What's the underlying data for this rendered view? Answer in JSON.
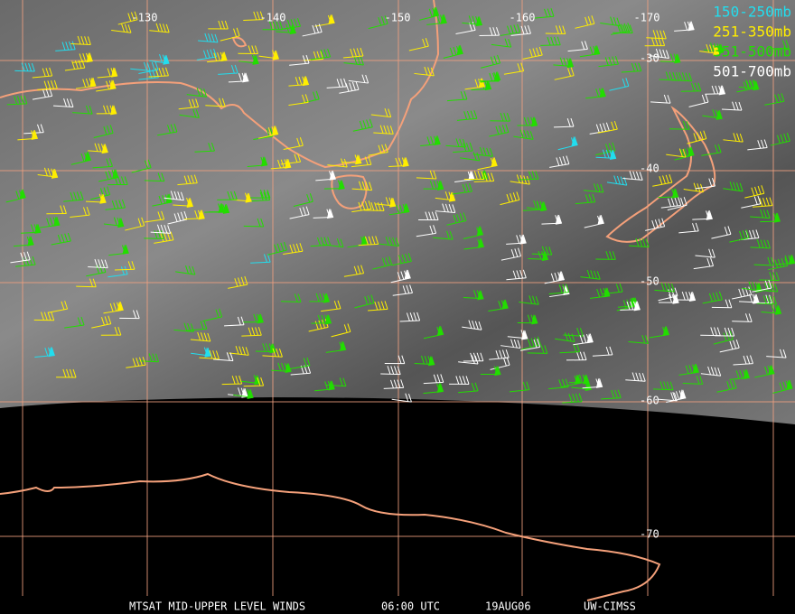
{
  "map": {
    "longitude_labels": [
      "-130",
      "-140",
      "-150",
      "-160",
      "-170"
    ],
    "latitude_labels": [
      "-30",
      "-40",
      "-50",
      "-60",
      "-70"
    ],
    "legend": [
      {
        "label": "150-250mb",
        "color": "#22ddee"
      },
      {
        "label": "251-350mb",
        "color": "#ffee00"
      },
      {
        "label": "351-500mb",
        "color": "#22dd00"
      },
      {
        "label": "501-700mb",
        "color": "#ffffff"
      }
    ],
    "footer": {
      "product": "MTSAT MID-UPPER LEVEL WINDS",
      "time": "06:00 UTC",
      "date": "19AUG06",
      "source": "UW-CIMSS"
    }
  }
}
